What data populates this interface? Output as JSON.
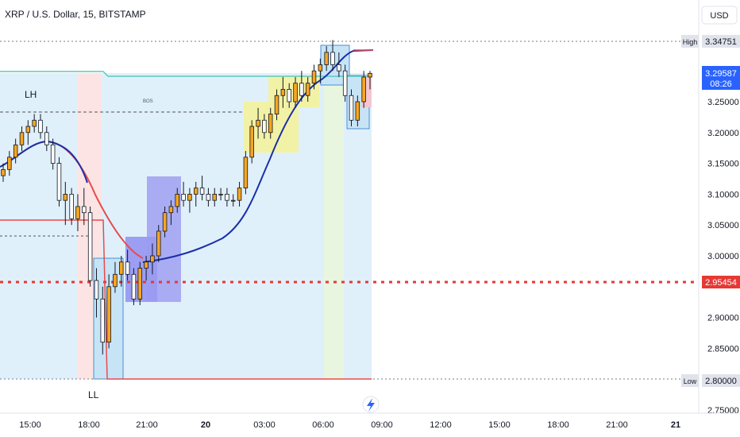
{
  "header": {
    "title": "XRP / U.S. Dollar, 15, BITSTAMP",
    "currency_label": "USD"
  },
  "price_axis": {
    "ticks": [
      "3.25000",
      "3.20000",
      "3.15000",
      "3.10000",
      "3.05000",
      "3.00000",
      "2.90000",
      "2.85000",
      "2.75000"
    ],
    "high_label": "High",
    "high_value": "3.34751",
    "low_label": "Low",
    "low_value": "2.80000",
    "last_price": "3.29587",
    "countdown": "08:26",
    "level_price": "2.95454"
  },
  "time_axis": {
    "labels": [
      "15:00",
      "18:00",
      "21:00",
      "20",
      "03:00",
      "06:00",
      "09:00",
      "12:00",
      "15:00",
      "18:00",
      "21:00",
      "21"
    ]
  },
  "annotations": {
    "lh": "LH",
    "ll": "LL",
    "bos": "BOS"
  },
  "colors": {
    "up_candle": "#f5a623",
    "down_candle": "#ffffff",
    "wick": "#131722",
    "ema_red": "#e84b4b",
    "ema_blue": "#1a2fa8",
    "level_red": "#e53935",
    "last_price_tag": "#2962ff"
  },
  "chart_data": {
    "type": "candlestick",
    "title": "XRP / U.S. Dollar, 15, BITSTAMP",
    "ylim": [
      2.75,
      3.39
    ],
    "y_ticks": [
      3.25,
      3.2,
      3.15,
      3.1,
      3.05,
      3.0,
      2.9,
      2.85,
      2.75
    ],
    "high": 3.34751,
    "low": 2.8,
    "last": 3.29587,
    "horizontal_level": 2.95454,
    "candles": [
      [
        3.13,
        3.15,
        3.12,
        3.14
      ],
      [
        3.14,
        3.17,
        3.13,
        3.16
      ],
      [
        3.16,
        3.19,
        3.15,
        3.18
      ],
      [
        3.18,
        3.21,
        3.17,
        3.2
      ],
      [
        3.2,
        3.22,
        3.18,
        3.21
      ],
      [
        3.21,
        3.23,
        3.2,
        3.22
      ],
      [
        3.22,
        3.23,
        3.19,
        3.2
      ],
      [
        3.2,
        3.21,
        3.17,
        3.18
      ],
      [
        3.18,
        3.19,
        3.14,
        3.15
      ],
      [
        3.15,
        3.16,
        3.08,
        3.09
      ],
      [
        3.09,
        3.12,
        3.05,
        3.1
      ],
      [
        3.1,
        3.11,
        3.05,
        3.06
      ],
      [
        3.06,
        3.1,
        3.04,
        3.08
      ],
      [
        3.08,
        3.11,
        3.05,
        3.07
      ],
      [
        3.07,
        3.08,
        2.95,
        2.96
      ],
      [
        2.96,
        2.98,
        2.9,
        2.93
      ],
      [
        2.93,
        2.95,
        2.84,
        2.86
      ],
      [
        2.86,
        2.97,
        2.85,
        2.95
      ],
      [
        2.95,
        2.99,
        2.94,
        2.97
      ],
      [
        2.97,
        3.0,
        2.95,
        2.99
      ],
      [
        2.99,
        3.01,
        2.96,
        2.97
      ],
      [
        2.97,
        2.98,
        2.92,
        2.93
      ],
      [
        2.93,
        2.99,
        2.92,
        2.98
      ],
      [
        2.98,
        3.0,
        2.96,
        2.99
      ],
      [
        2.99,
        3.02,
        2.97,
        3.0
      ],
      [
        3.0,
        3.05,
        2.99,
        3.04
      ],
      [
        3.04,
        3.08,
        3.03,
        3.07
      ],
      [
        3.07,
        3.09,
        3.05,
        3.08
      ],
      [
        3.08,
        3.11,
        3.07,
        3.1
      ],
      [
        3.1,
        3.12,
        3.08,
        3.09
      ],
      [
        3.09,
        3.11,
        3.07,
        3.1
      ],
      [
        3.1,
        3.12,
        3.08,
        3.11
      ],
      [
        3.11,
        3.13,
        3.09,
        3.1
      ],
      [
        3.1,
        3.11,
        3.08,
        3.09
      ],
      [
        3.09,
        3.11,
        3.08,
        3.1
      ],
      [
        3.1,
        3.11,
        3.09,
        3.1
      ],
      [
        3.1,
        3.11,
        3.08,
        3.09
      ],
      [
        3.09,
        3.1,
        3.08,
        3.09
      ],
      [
        3.09,
        3.12,
        3.08,
        3.11
      ],
      [
        3.11,
        3.17,
        3.1,
        3.16
      ],
      [
        3.16,
        3.22,
        3.15,
        3.21
      ],
      [
        3.21,
        3.24,
        3.19,
        3.22
      ],
      [
        3.22,
        3.23,
        3.19,
        3.2
      ],
      [
        3.2,
        3.24,
        3.19,
        3.23
      ],
      [
        3.23,
        3.27,
        3.22,
        3.26
      ],
      [
        3.26,
        3.29,
        3.24,
        3.27
      ],
      [
        3.27,
        3.28,
        3.24,
        3.25
      ],
      [
        3.25,
        3.29,
        3.24,
        3.28
      ],
      [
        3.28,
        3.3,
        3.25,
        3.26
      ],
      [
        3.26,
        3.29,
        3.25,
        3.28
      ],
      [
        3.28,
        3.31,
        3.27,
        3.3
      ],
      [
        3.3,
        3.32,
        3.28,
        3.31
      ],
      [
        3.31,
        3.34,
        3.3,
        3.33
      ],
      [
        3.33,
        3.35,
        3.3,
        3.31
      ],
      [
        3.31,
        3.33,
        3.29,
        3.3
      ],
      [
        3.3,
        3.31,
        3.25,
        3.26
      ],
      [
        3.26,
        3.27,
        3.21,
        3.22
      ],
      [
        3.22,
        3.26,
        3.21,
        3.25
      ],
      [
        3.25,
        3.3,
        3.24,
        3.29
      ],
      [
        3.29,
        3.3,
        3.27,
        3.296
      ]
    ]
  }
}
